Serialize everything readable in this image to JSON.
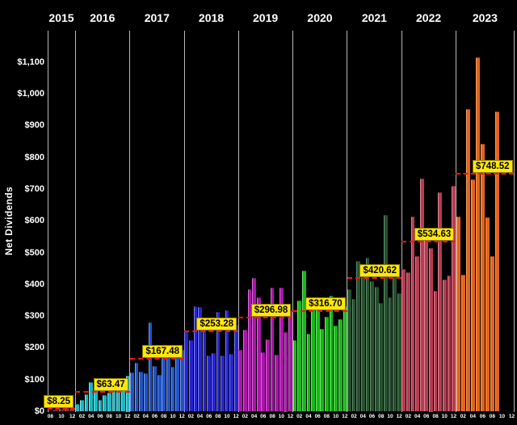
{
  "chart_data": {
    "type": "bar",
    "title": "",
    "ylabel": "Net Dividends",
    "xlabel": "",
    "ylim": [
      0,
      1100
    ],
    "grid": false,
    "background": "#000000",
    "accent_colors": {
      "average_line": "#ff1212",
      "average_label_bg": "#ffe70a",
      "average_label_text": "#000000",
      "year_divider": "#b9b9b9",
      "axis_text": "#ffffff"
    },
    "y_tick_labels": [
      "$0",
      "$100",
      "$200",
      "$300",
      "$400",
      "$500",
      "$600",
      "$700",
      "$800",
      "$900",
      "$1,000",
      "$1,100"
    ],
    "years": [
      {
        "label": "2015",
        "slots": 5,
        "start_month_label": "08",
        "values": [
          3.5,
          6,
          8.5,
          10.5,
          12.75
        ],
        "avg": 8.25,
        "avg_label": "$8.25",
        "bar_color": "#8b2433",
        "bar_highlight": "#b25a66",
        "tick_labels": [
          "08",
          "10",
          "12"
        ],
        "tick_slots": [
          0,
          2,
          4
        ]
      },
      {
        "label": "2016",
        "slots": 12,
        "values": [
          24,
          38,
          55,
          94,
          94,
          36,
          52,
          60,
          64,
          64,
          68,
          112.6
        ],
        "avg": 63.47,
        "avg_label": "$63.47",
        "bar_color": "#17b8c4",
        "bar_highlight": "#8fe0e6",
        "tick_labels": [
          "02",
          "04",
          "06",
          "08",
          "10",
          "12"
        ],
        "tick_slots": [
          1,
          3,
          5,
          7,
          9,
          11
        ]
      },
      {
        "label": "2017",
        "slots": 12,
        "values": [
          124,
          153,
          126,
          121,
          282,
          143,
          117,
          202,
          204,
          141,
          202,
          195
        ],
        "avg": 167.48,
        "avg_label": "$167.48",
        "bar_color": "#2053c4",
        "bar_highlight": "#7e9be0",
        "tick_labels": [
          "02",
          "04",
          "06",
          "08",
          "10",
          "12"
        ],
        "tick_slots": [
          1,
          3,
          5,
          7,
          9,
          11
        ]
      },
      {
        "label": "2018",
        "slots": 12,
        "values": [
          253,
          224,
          333,
          329,
          274,
          177,
          185,
          313,
          177,
          319,
          181,
          274
        ],
        "avg": 253.28,
        "avg_label": "$253.28",
        "bar_color": "#2424cf",
        "bar_highlight": "#8080e8",
        "tick_labels": [
          "02",
          "04",
          "06",
          "08",
          "10",
          "12"
        ],
        "tick_slots": [
          1,
          3,
          5,
          7,
          9,
          11
        ]
      },
      {
        "label": "2019",
        "slots": 12,
        "values": [
          195,
          258,
          385,
          420,
          360,
          188,
          228,
          390,
          180,
          390,
          250,
          320
        ],
        "avg": 296.98,
        "avg_label": "$296.98",
        "bar_color": "#ab14ab",
        "bar_highlight": "#d36fd3",
        "tick_labels": [
          "02",
          "04",
          "06",
          "08",
          "10",
          "12"
        ],
        "tick_slots": [
          1,
          3,
          5,
          7,
          9,
          11
        ]
      },
      {
        "label": "2020",
        "slots": 12,
        "values": [
          225,
          350,
          445,
          245,
          358,
          358,
          262,
          300,
          364,
          270,
          292,
          331
        ],
        "avg": 316.7,
        "avg_label": "$316.70",
        "bar_color": "#16b916",
        "bar_highlight": "#7ade7a",
        "tick_labels": [
          "02",
          "04",
          "06",
          "08",
          "10",
          "12"
        ],
        "tick_slots": [
          1,
          3,
          5,
          7,
          9,
          11
        ]
      },
      {
        "label": "2021",
        "slots": 12,
        "values": [
          385,
          356,
          474,
          423,
          485,
          411,
          394,
          343,
          620,
          360,
          423,
          373
        ],
        "avg": 420.62,
        "avg_label": "$420.62",
        "bar_color": "#26512f",
        "bar_highlight": "#648e6e",
        "tick_labels": [
          "02",
          "04",
          "06",
          "08",
          "10",
          "12"
        ],
        "tick_slots": [
          1,
          3,
          5,
          7,
          9,
          11
        ]
      },
      {
        "label": "2022",
        "slots": 12,
        "values": [
          450,
          440,
          615,
          490,
          735,
          545,
          515,
          380,
          690,
          415,
          430,
          710
        ],
        "avg": 534.63,
        "avg_label": "$534.63",
        "bar_color": "#b53c52",
        "bar_highlight": "#d88793",
        "tick_labels": [
          "02",
          "04",
          "06",
          "08",
          "10",
          "12"
        ],
        "tick_slots": [
          1,
          3,
          5,
          7,
          9,
          11
        ]
      },
      {
        "label": "2023",
        "slots": 12,
        "values": [
          615,
          432,
          953,
          731,
          1115,
          843,
          613,
          490,
          945
        ],
        "avg": 748.52,
        "avg_label": "$748.52",
        "bar_color": "#e4631d",
        "bar_highlight": "#f2a05f",
        "tick_labels": [
          "02",
          "04",
          "06",
          "08",
          "10",
          "12"
        ],
        "tick_slots": [
          1,
          3,
          5,
          7,
          9,
          11
        ]
      }
    ]
  }
}
